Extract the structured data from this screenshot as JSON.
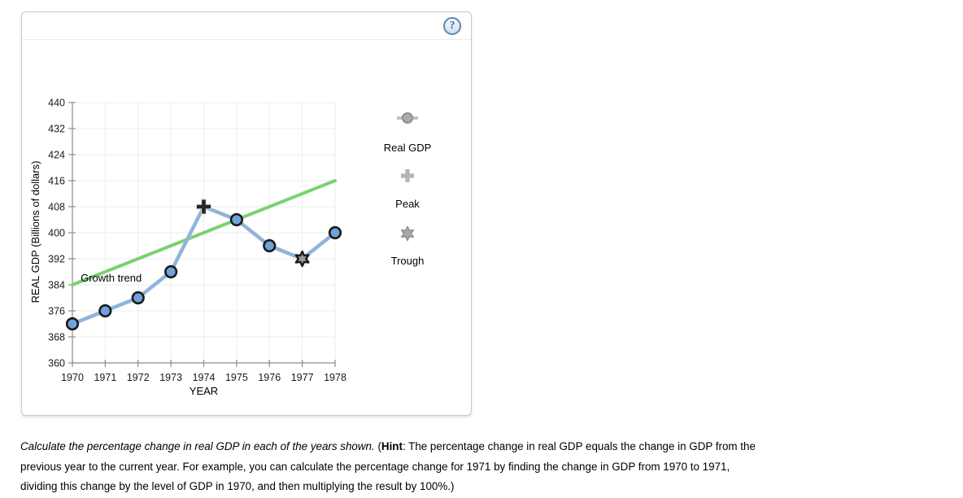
{
  "panel": {
    "help_glyph": "?"
  },
  "chart_data": {
    "type": "line",
    "x": [
      1970,
      1971,
      1972,
      1973,
      1974,
      1975,
      1976,
      1977,
      1978
    ],
    "series": [
      {
        "name": "Real GDP",
        "values": [
          372,
          376,
          380,
          388,
          408,
          404,
          396,
          392,
          400
        ],
        "color": "#8fb3dc",
        "marker_fill": "#6ea2d8"
      },
      {
        "name": "Growth trend",
        "x": [
          1970,
          1978
        ],
        "values": [
          384,
          416
        ],
        "color": "#79d26f"
      }
    ],
    "peak": {
      "x": 1974,
      "y": 408
    },
    "trough": {
      "x": 1977,
      "y": 392
    },
    "annotation": {
      "text": "Growth trend",
      "x": 1970.25,
      "y": 385
    },
    "xlabel": "YEAR",
    "ylabel": "REAL GDP (Billions of dollars)",
    "xlim": [
      1970,
      1978
    ],
    "ylim": [
      360,
      440
    ],
    "ytick_step": 8,
    "grid": true,
    "legend_position": "right",
    "legend": [
      {
        "label": "Real GDP",
        "marker": "line-circle"
      },
      {
        "label": "Peak",
        "marker": "plus"
      },
      {
        "label": "Trough",
        "marker": "star"
      }
    ]
  },
  "question": {
    "italic": "Calculate the percentage change in real GDP in each of the years shown.",
    "pre_hint": " (",
    "hint_label": "Hint",
    "rest": ": The percentage change in real GDP equals the change in GDP from the previous year to the current year. For example, you can calculate the percentage change for 1971 by finding the change in GDP from 1970 to 1971, dividing this change by the level of GDP in 1970, and then multiplying the result by 100%.)"
  }
}
